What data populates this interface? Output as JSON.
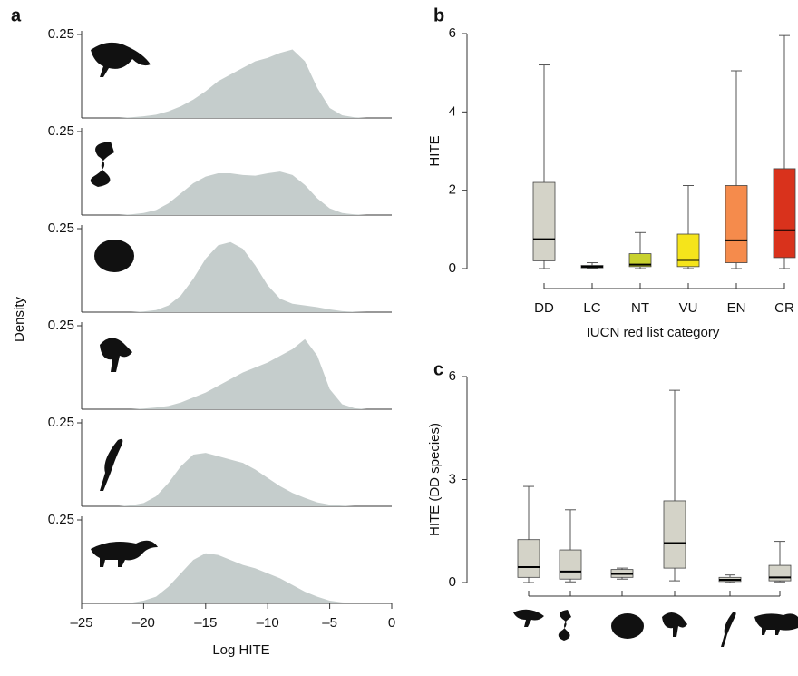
{
  "chart_data": [
    {
      "type": "area",
      "panel_label": "a",
      "ylabel": "Density",
      "color": "#c5cdcc",
      "xlim": [
        -25,
        0
      ],
      "ylim": [
        0,
        0.25
      ],
      "yticks": [
        0.25
      ],
      "x": [
        -25,
        -24,
        -23,
        -22,
        -21,
        -20,
        -19,
        -18,
        -17,
        -16,
        -15,
        -14,
        -13,
        -12,
        -11,
        -10,
        -9,
        -8,
        -7,
        -6,
        -5,
        -4,
        -3,
        -2,
        -1,
        0
      ],
      "values": [
        0,
        0,
        0,
        0,
        0.002,
        0.005,
        0.01,
        0.02,
        0.035,
        0.055,
        0.08,
        0.11,
        0.13,
        0.15,
        0.17,
        0.18,
        0.195,
        0.205,
        0.17,
        0.09,
        0.03,
        0.008,
        0.002,
        0,
        0,
        0
      ]
    },
    {
      "type": "area",
      "color": "#c5cdcc",
      "xlim": [
        -25,
        0
      ],
      "ylim": [
        0,
        0.25
      ],
      "yticks": [
        0.25
      ],
      "x": [
        -25,
        -24,
        -23,
        -22,
        -21,
        -20,
        -19,
        -18,
        -17,
        -16,
        -15,
        -14,
        -13,
        -12,
        -11,
        -10,
        -9,
        -8,
        -7,
        -6,
        -5,
        -4,
        -3,
        -2,
        -1,
        0
      ],
      "values": [
        0,
        0,
        0,
        0,
        0.002,
        0.006,
        0.015,
        0.035,
        0.065,
        0.095,
        0.115,
        0.125,
        0.125,
        0.12,
        0.118,
        0.125,
        0.13,
        0.12,
        0.09,
        0.05,
        0.02,
        0.006,
        0.002,
        0,
        0,
        0
      ]
    },
    {
      "type": "area",
      "color": "#c5cdcc",
      "xlim": [
        -25,
        0
      ],
      "ylim": [
        0,
        0.25
      ],
      "yticks": [
        0.25
      ],
      "x": [
        -25,
        -24,
        -23,
        -22,
        -21,
        -20,
        -19,
        -18,
        -17,
        -16,
        -15,
        -14,
        -13,
        -12,
        -11,
        -10,
        -9,
        -8,
        -7,
        -6,
        -5,
        -4,
        -3,
        -2,
        -1,
        0
      ],
      "values": [
        0,
        0,
        0,
        0,
        0,
        0.002,
        0.006,
        0.02,
        0.05,
        0.1,
        0.16,
        0.2,
        0.21,
        0.19,
        0.14,
        0.08,
        0.04,
        0.025,
        0.02,
        0.015,
        0.008,
        0.003,
        0.001,
        0,
        0,
        0
      ]
    },
    {
      "type": "area",
      "color": "#c5cdcc",
      "xlim": [
        -25,
        0
      ],
      "ylim": [
        0,
        0.25
      ],
      "yticks": [
        0.25
      ],
      "x": [
        -25,
        -24,
        -23,
        -22,
        -21,
        -20,
        -19,
        -18,
        -17,
        -16,
        -15,
        -14,
        -13,
        -12,
        -11,
        -10,
        -9,
        -8,
        -7,
        -6,
        -5,
        -4,
        -3,
        -2,
        -1,
        0
      ],
      "values": [
        0,
        0,
        0,
        0,
        0,
        0.002,
        0.005,
        0.01,
        0.02,
        0.035,
        0.05,
        0.07,
        0.09,
        0.11,
        0.125,
        0.14,
        0.16,
        0.18,
        0.21,
        0.16,
        0.06,
        0.015,
        0.003,
        0,
        0,
        0
      ]
    },
    {
      "type": "area",
      "color": "#c5cdcc",
      "xlim": [
        -25,
        0
      ],
      "ylim": [
        0,
        0.25
      ],
      "yticks": [
        0.25
      ],
      "x": [
        -25,
        -24,
        -23,
        -22,
        -21,
        -20,
        -19,
        -18,
        -17,
        -16,
        -15,
        -14,
        -13,
        -12,
        -11,
        -10,
        -9,
        -8,
        -7,
        -6,
        -5,
        -4,
        -3,
        -2,
        -1,
        0
      ],
      "values": [
        0,
        0,
        0,
        0,
        0.003,
        0.01,
        0.03,
        0.07,
        0.12,
        0.155,
        0.16,
        0.15,
        0.14,
        0.13,
        0.11,
        0.085,
        0.06,
        0.04,
        0.025,
        0.012,
        0.005,
        0.002,
        0,
        0,
        0,
        0
      ]
    },
    {
      "type": "area",
      "color": "#c5cdcc",
      "xlabel": "Log HITE",
      "xlim": [
        -25,
        0
      ],
      "ylim": [
        0,
        0.25
      ],
      "yticks": [
        0.25
      ],
      "xticks": [
        {
          "value": -25,
          "label": "–25"
        },
        {
          "value": -20,
          "label": "–20"
        },
        {
          "value": -15,
          "label": "–15"
        },
        {
          "value": -10,
          "label": "–10"
        },
        {
          "value": -5,
          "label": "–5"
        },
        0
      ],
      "x": [
        -25,
        -24,
        -23,
        -22,
        -21,
        -20,
        -19,
        -18,
        -17,
        -16,
        -15,
        -14,
        -13,
        -12,
        -11,
        -10,
        -9,
        -8,
        -7,
        -6,
        -5,
        -4,
        -3,
        -2,
        -1,
        0
      ],
      "values": [
        0,
        0,
        0,
        0,
        0.002,
        0.008,
        0.02,
        0.05,
        0.09,
        0.13,
        0.15,
        0.145,
        0.13,
        0.115,
        0.105,
        0.09,
        0.075,
        0.055,
        0.035,
        0.02,
        0.008,
        0.003,
        0.001,
        0,
        0,
        0
      ]
    },
    {
      "type": "box",
      "panel_label": "b",
      "ylabel": "HITE",
      "xlabel": "IUCN red list category",
      "ylim": [
        0,
        6
      ],
      "yticks": [
        0,
        2,
        4,
        6
      ],
      "categories": [
        "DD",
        "LC",
        "NT",
        "VU",
        "EN",
        "CR"
      ],
      "boxes": [
        {
          "color": "#d4d3c8",
          "min": 0,
          "q1": 0.2,
          "median": 0.75,
          "q3": 2.2,
          "max": 5.2
        },
        {
          "color": "#2e5a30",
          "min": 0,
          "q1": 0.02,
          "median": 0.05,
          "q3": 0.08,
          "max": 0.15
        },
        {
          "color": "#c8d12e",
          "min": 0,
          "q1": 0.05,
          "median": 0.1,
          "q3": 0.38,
          "max": 0.92
        },
        {
          "color": "#f5e41b",
          "min": 0,
          "q1": 0.05,
          "median": 0.22,
          "q3": 0.88,
          "max": 2.12
        },
        {
          "color": "#f58b4c",
          "min": 0,
          "q1": 0.15,
          "median": 0.72,
          "q3": 2.12,
          "max": 5.05
        },
        {
          "color": "#d9321c",
          "min": 0,
          "q1": 0.28,
          "median": 0.98,
          "q3": 2.55,
          "max": 5.95
        }
      ]
    },
    {
      "type": "box",
      "panel_label": "c",
      "ylabel": "HITE (DD species)",
      "ylim": [
        0,
        6
      ],
      "yticks": [
        0,
        3,
        6
      ],
      "boxes": [
        {
          "color": "#d4d3c8",
          "min": 0,
          "q1": 0.15,
          "median": 0.45,
          "q3": 1.25,
          "max": 2.8
        },
        {
          "color": "#d4d3c8",
          "min": 0.02,
          "q1": 0.1,
          "median": 0.32,
          "q3": 0.95,
          "max": 2.12
        },
        {
          "color": "#d4d3c8",
          "min": 0.1,
          "q1": 0.15,
          "median": 0.25,
          "q3": 0.38,
          "max": 0.42
        },
        {
          "color": "#d4d3c8",
          "min": 0.05,
          "q1": 0.42,
          "median": 1.15,
          "q3": 2.38,
          "max": 5.6
        },
        {
          "color": "#d4d3c8",
          "min": 0,
          "q1": 0.03,
          "median": 0.08,
          "q3": 0.15,
          "max": 0.22
        },
        {
          "color": "#d4d3c8",
          "min": 0.02,
          "q1": 0.05,
          "median": 0.15,
          "q3": 0.5,
          "max": 1.2
        }
      ]
    }
  ]
}
